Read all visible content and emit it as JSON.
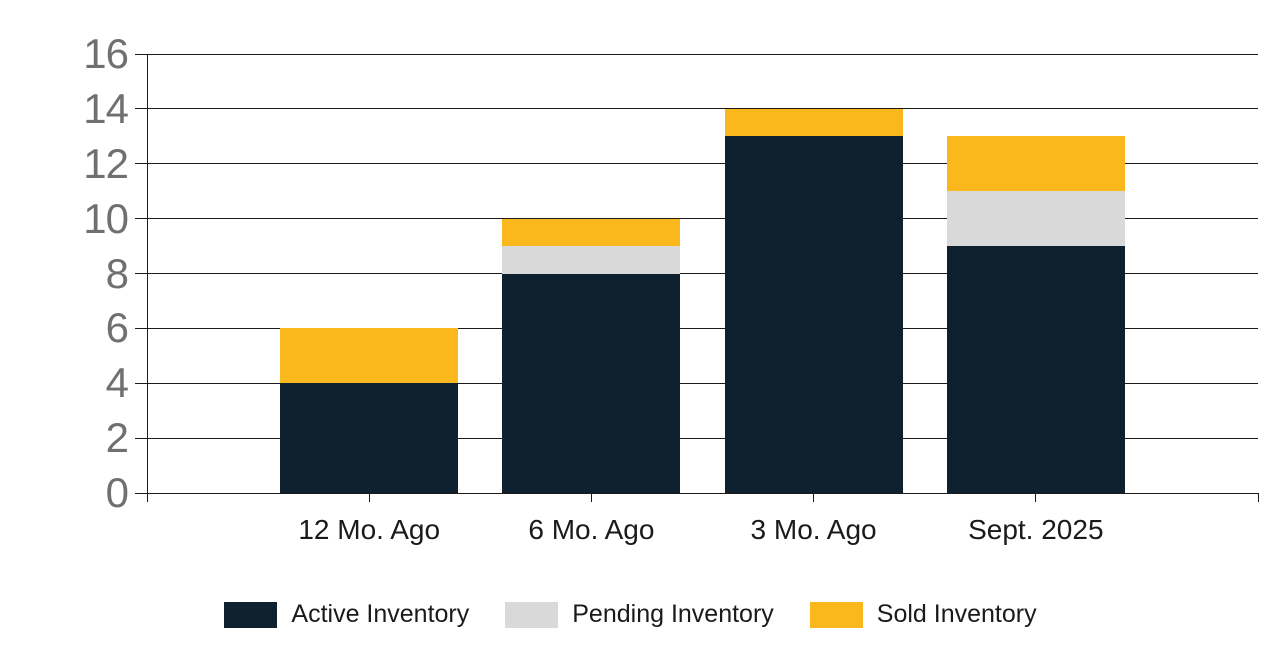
{
  "chart_data": {
    "type": "bar",
    "stacked": true,
    "title": "",
    "categories": [
      "12 Mo. Ago",
      "6 Mo. Ago",
      "3 Mo. Ago",
      "Sept. 2025"
    ],
    "series": [
      {
        "name": "Active Inventory",
        "color": "#0F212F",
        "values": [
          4,
          8,
          13,
          9
        ]
      },
      {
        "name": "Pending Inventory",
        "color": "#D9D9D9",
        "values": [
          0,
          1,
          0,
          2
        ]
      },
      {
        "name": "Sold Inventory",
        "color": "#FBB81C",
        "values": [
          2,
          1,
          1,
          2
        ]
      }
    ],
    "stack_totals": [
      6,
      10,
      14,
      13
    ],
    "ylim": [
      0,
      16
    ],
    "ytick_step": 2,
    "ytick_labels": [
      "0",
      "2",
      "4",
      "6",
      "8",
      "10",
      "12",
      "14",
      "16"
    ],
    "grid": "horizontal",
    "legend_position": "bottom",
    "colors": {
      "gridline": "#1A1A1A",
      "axis": "#1A1A1A",
      "y_tick_label": "#707070",
      "x_tick_label": "#1A1A1A",
      "legend_label": "#1A1A1A",
      "background": "#FFFFFF"
    }
  }
}
